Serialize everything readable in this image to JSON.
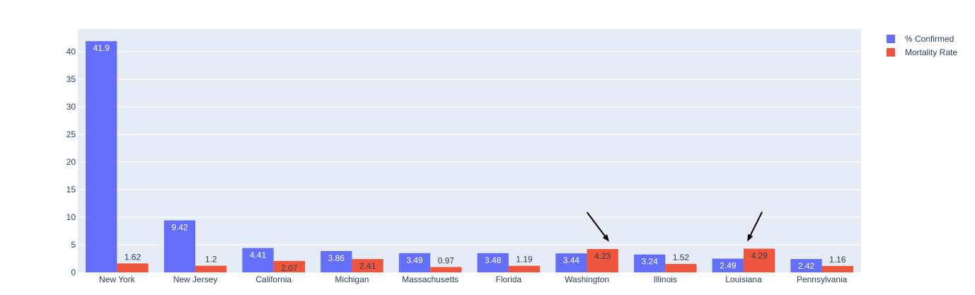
{
  "chart_data": {
    "type": "bar",
    "categories": [
      "New York",
      "New Jersey",
      "California",
      "Michigan",
      "Massachusetts",
      "Florida",
      "Washington",
      "Illinois",
      "Louisiana",
      "Pennsylvania"
    ],
    "series": [
      {
        "name": "% Confirmed",
        "color": "#636efa",
        "values": [
          41.9,
          9.42,
          4.41,
          3.86,
          3.49,
          3.48,
          3.44,
          3.24,
          2.49,
          2.42
        ],
        "labels": [
          "41.9",
          "9.42",
          "4.41",
          "3.86",
          "3.49",
          "3.48",
          "3.44",
          "3.24",
          "2.49",
          "2.42"
        ]
      },
      {
        "name": "Mortality Rate",
        "color": "#ef553b",
        "values": [
          1.62,
          1.2,
          2.07,
          2.41,
          0.97,
          1.19,
          4.23,
          1.52,
          4.29,
          1.16
        ],
        "labels": [
          "1.62",
          "1.2",
          "2.07",
          "2.41",
          "0.97",
          "1.19",
          "4.23",
          "1.52",
          "4.29",
          "1.16"
        ]
      }
    ],
    "yticks": [
      "0",
      "5",
      "10",
      "15",
      "20",
      "25",
      "30",
      "35",
      "40"
    ],
    "ylim": [
      0,
      44.1
    ],
    "grid": true,
    "legend_position": "top-right",
    "annotations": [
      {
        "category": "Washington",
        "series": "Mortality Rate",
        "arrow": "down-right"
      },
      {
        "category": "Louisiana",
        "series": "Mortality Rate",
        "arrow": "down-left"
      }
    ],
    "plot_background": "#e5ecf6"
  }
}
